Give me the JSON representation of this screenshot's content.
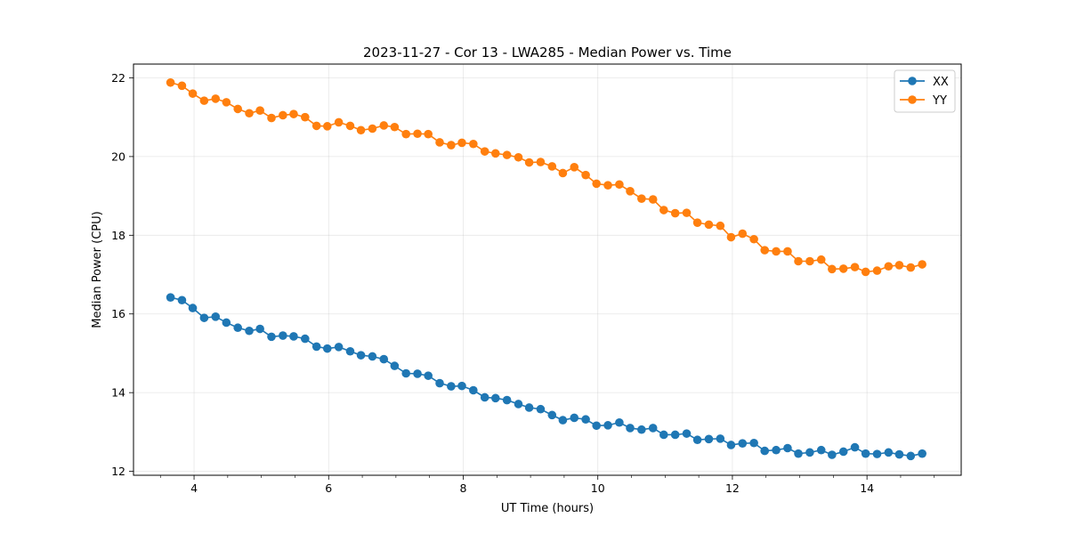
{
  "chart_data": {
    "type": "line",
    "title": "2023-11-27 - Cor 13 - LWA285 - Median Power vs. Time",
    "xlabel": "UT Time (hours)",
    "ylabel": "Median Power (CPU)",
    "xlim": [
      3.1,
      15.4
    ],
    "ylim": [
      11.9,
      22.35
    ],
    "xticks": [
      4,
      6,
      8,
      10,
      12,
      14
    ],
    "yticks": [
      12,
      14,
      16,
      18,
      20,
      22
    ],
    "grid": true,
    "legend_position": "top-right",
    "x": [
      3.65,
      3.82,
      3.98,
      4.15,
      4.32,
      4.48,
      4.65,
      4.82,
      4.98,
      5.15,
      5.32,
      5.48,
      5.65,
      5.82,
      5.98,
      6.15,
      6.32,
      6.48,
      6.65,
      6.82,
      6.98,
      7.15,
      7.32,
      7.48,
      7.65,
      7.82,
      7.98,
      8.15,
      8.32,
      8.48,
      8.65,
      8.82,
      8.98,
      9.15,
      9.32,
      9.48,
      9.65,
      9.82,
      9.98,
      10.15,
      10.32,
      10.48,
      10.65,
      10.82,
      10.98,
      11.15,
      11.32,
      11.48,
      11.65,
      11.82,
      11.98,
      12.15,
      12.32,
      12.48,
      12.65,
      12.82,
      12.98,
      13.15,
      13.32,
      13.48,
      13.65,
      13.82,
      13.98,
      14.15,
      14.32,
      14.48,
      14.65,
      14.82
    ],
    "series": [
      {
        "name": "XX",
        "color": "#1f77b4",
        "values": [
          16.42,
          16.35,
          16.15,
          15.9,
          15.93,
          15.78,
          15.65,
          15.57,
          15.62,
          15.42,
          15.45,
          15.43,
          15.37,
          15.17,
          15.12,
          15.16,
          15.05,
          14.95,
          14.92,
          14.85,
          14.68,
          14.49,
          14.48,
          14.43,
          14.24,
          14.16,
          14.17,
          14.06,
          13.88,
          13.86,
          13.81,
          13.71,
          13.62,
          13.58,
          13.43,
          13.3,
          13.36,
          13.32,
          13.16,
          13.17,
          13.24,
          13.1,
          13.06,
          13.1,
          12.93,
          12.93,
          12.96,
          12.8,
          12.82,
          12.83,
          12.67,
          12.71,
          12.72,
          12.52,
          12.54,
          12.59,
          12.45,
          12.48,
          12.54,
          12.42,
          12.5,
          12.61,
          12.45,
          12.44,
          12.48,
          12.43,
          12.39,
          12.45
        ]
      },
      {
        "name": "YY",
        "color": "#ff7f0e",
        "values": [
          21.88,
          21.8,
          21.6,
          21.42,
          21.47,
          21.38,
          21.21,
          21.1,
          21.17,
          20.98,
          21.05,
          21.08,
          21.0,
          20.78,
          20.77,
          20.87,
          20.78,
          20.67,
          20.71,
          20.79,
          20.75,
          20.57,
          20.58,
          20.57,
          20.36,
          20.29,
          20.35,
          20.32,
          20.13,
          20.08,
          20.04,
          19.98,
          19.85,
          19.86,
          19.75,
          19.58,
          19.73,
          19.53,
          19.31,
          19.27,
          19.29,
          19.12,
          18.93,
          18.91,
          18.64,
          18.56,
          18.57,
          18.32,
          18.27,
          18.24,
          17.95,
          18.04,
          17.9,
          17.62,
          17.59,
          17.59,
          17.34,
          17.34,
          17.38,
          17.14,
          17.15,
          17.19,
          17.07,
          17.1,
          17.21,
          17.24,
          17.18,
          17.26
        ]
      }
    ]
  }
}
